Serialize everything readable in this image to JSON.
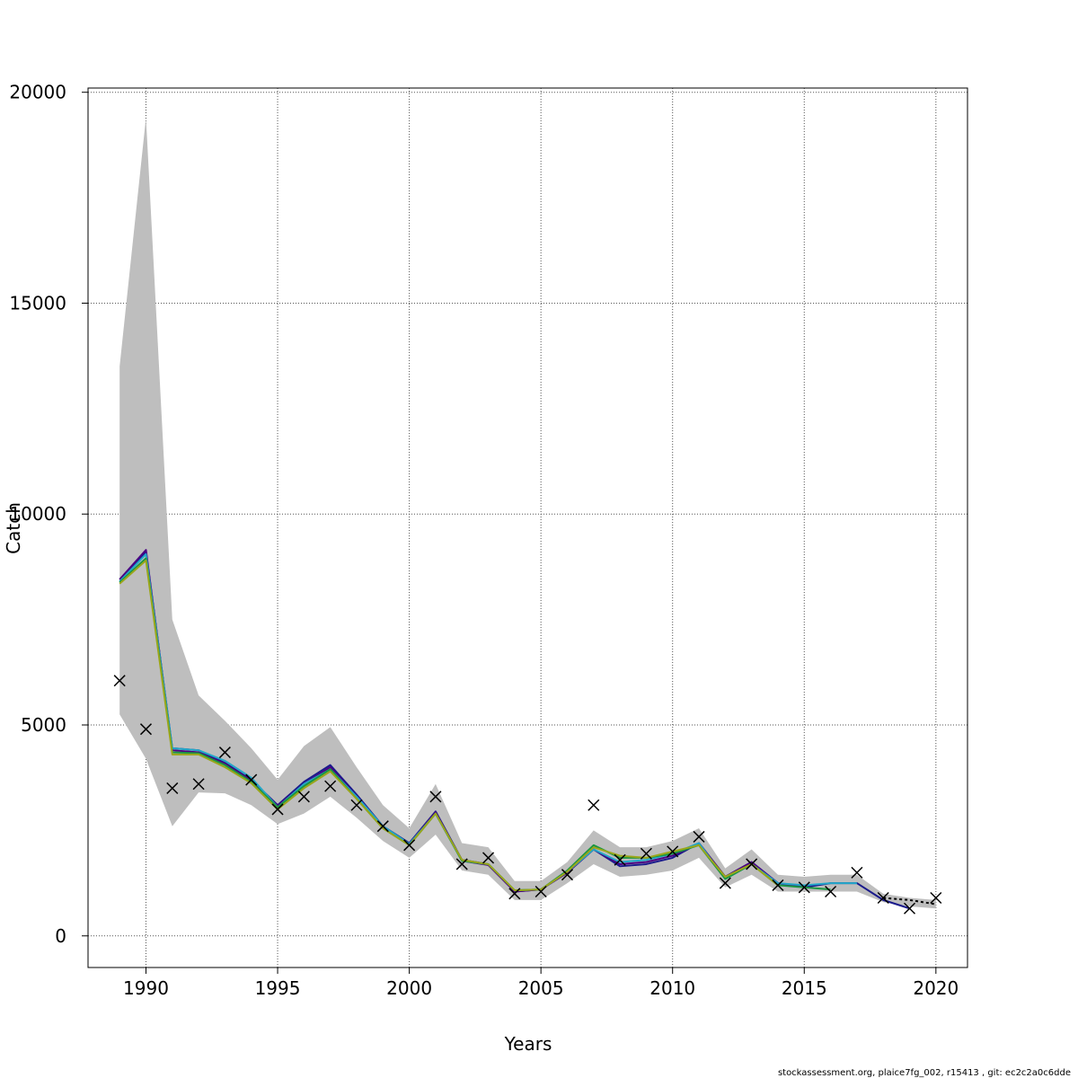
{
  "chart_data": {
    "type": "line",
    "title": "",
    "xlabel": "Years",
    "ylabel": "Catch",
    "xlim": [
      1987.8,
      2021.2
    ],
    "ylim": [
      -750,
      20100
    ],
    "grid": true,
    "x_ticks": [
      1990,
      1995,
      2000,
      2005,
      2010,
      2015,
      2020
    ],
    "y_ticks": [
      0,
      5000,
      10000,
      15000,
      20000
    ],
    "years": [
      1989,
      1990,
      1991,
      1992,
      1993,
      1994,
      1995,
      1996,
      1997,
      1998,
      1999,
      2000,
      2001,
      2002,
      2003,
      2004,
      2005,
      2006,
      2007,
      2008,
      2009,
      2010,
      2011,
      2012,
      2013,
      2014,
      2015,
      2016,
      2017,
      2018,
      2019,
      2020
    ],
    "confidence_band": {
      "color": "#bebebe",
      "upper": [
        13500,
        19400,
        7500,
        5700,
        5100,
        4450,
        3700,
        4500,
        4950,
        4000,
        3100,
        2550,
        3600,
        2200,
        2100,
        1300,
        1300,
        1750,
        2500,
        2100,
        2100,
        2250,
        2550,
        1600,
        2050,
        1450,
        1400,
        1450,
        1450,
        1000,
        900,
        850
      ],
      "lower": [
        5250,
        4200,
        2600,
        3400,
        3380,
        3100,
        2650,
        2900,
        3300,
        2800,
        2250,
        1850,
        2400,
        1550,
        1450,
        850,
        850,
        1250,
        1700,
        1400,
        1450,
        1550,
        1850,
        1150,
        1450,
        1050,
        1050,
        1050,
        1050,
        800,
        700,
        650
      ]
    },
    "series": [
      {
        "color": "#1a1a8c",
        "values": [
          8450,
          9100,
          4450,
          4400,
          4100,
          3700,
          3100,
          3650,
          4050,
          3350,
          2600,
          2200,
          2950,
          1800,
          1700,
          1050,
          1100,
          1500,
          2050,
          1650,
          1700,
          1850,
          2200,
          1400,
          1750,
          1250,
          1150,
          1250,
          1250,
          850,
          650,
          null
        ]
      },
      {
        "color": "#4b0082",
        "values": [
          8450,
          9150,
          4400,
          4350,
          4080,
          3680,
          3080,
          3600,
          4000,
          3300,
          2580,
          2180,
          2930,
          1780,
          1680,
          1050,
          1100,
          1500,
          2050,
          1700,
          1750,
          1900,
          2200,
          1400,
          1750,
          1250,
          1150,
          null,
          null,
          null,
          null,
          null
        ]
      },
      {
        "color": "#22a7c9",
        "values": [
          8400,
          9050,
          4450,
          4400,
          4150,
          3750,
          3050,
          3600,
          3950,
          3300,
          2600,
          2180,
          2900,
          1780,
          1700,
          1080,
          1100,
          1520,
          2050,
          1750,
          1800,
          1950,
          2200,
          1350,
          1700,
          1250,
          1200,
          1250,
          1250,
          null,
          null,
          null
        ]
      },
      {
        "color": "#1a9641",
        "values": [
          8380,
          8950,
          4350,
          4330,
          4050,
          3650,
          3050,
          3550,
          3950,
          3250,
          2550,
          2150,
          2900,
          1780,
          1700,
          1080,
          1100,
          1550,
          2150,
          1850,
          1850,
          1950,
          2150,
          1350,
          1700,
          1200,
          1150,
          1100,
          null,
          null,
          null,
          null
        ]
      },
      {
        "color": "#9aa61a",
        "values": [
          8350,
          8900,
          4300,
          4300,
          4000,
          3620,
          3000,
          3500,
          3900,
          3250,
          2550,
          2150,
          2900,
          1800,
          1700,
          1080,
          1100,
          1520,
          2100,
          1900,
          1850,
          2000,
          2150,
          1400,
          1700,
          1200,
          null,
          null,
          null,
          null,
          null,
          null
        ]
      },
      {
        "color": "#000000",
        "dashed": true,
        "values": [
          null,
          null,
          null,
          null,
          null,
          null,
          null,
          null,
          null,
          null,
          null,
          null,
          null,
          null,
          null,
          null,
          null,
          null,
          null,
          null,
          null,
          null,
          null,
          null,
          null,
          null,
          null,
          null,
          null,
          900,
          850,
          750
        ]
      }
    ],
    "observed": {
      "marker": "x",
      "years": [
        1989,
        1990,
        1991,
        1992,
        1993,
        1994,
        1995,
        1996,
        1997,
        1998,
        1999,
        2000,
        2001,
        2002,
        2003,
        2004,
        2005,
        2006,
        2007,
        2008,
        2009,
        2010,
        2011,
        2012,
        2013,
        2014,
        2015,
        2016,
        2017,
        2018,
        2019,
        2020
      ],
      "values": [
        6050,
        4900,
        3500,
        3600,
        4350,
        3700,
        3000,
        3300,
        3550,
        3100,
        2600,
        2150,
        3300,
        1700,
        1850,
        1000,
        1050,
        1450,
        3100,
        1800,
        1950,
        2000,
        2350,
        1250,
        1700,
        1200,
        1150,
        1050,
        1500,
        900,
        650,
        900
      ]
    }
  },
  "footer": "stockassessment.org, plaice7fg_002, r15413 , git: ec2c2a0c6dde"
}
